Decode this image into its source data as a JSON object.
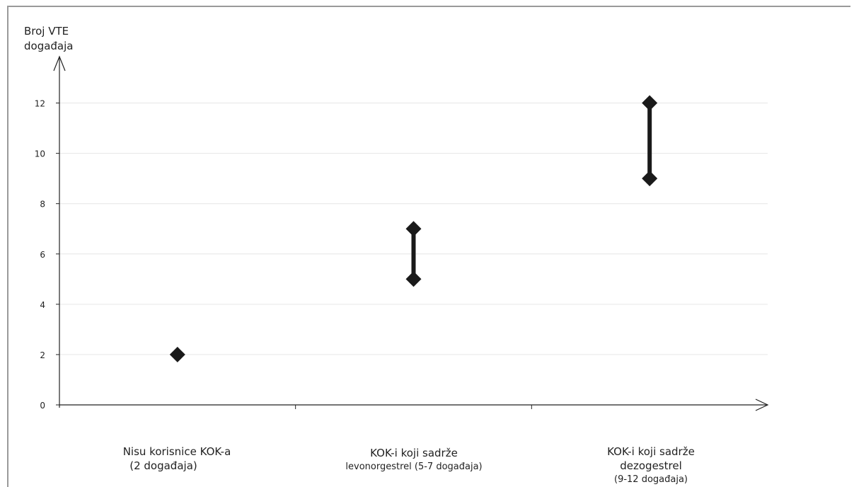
{
  "chart_data": {
    "type": "scatter",
    "ylabel_lines": [
      "Broj VTE",
      "događaja"
    ],
    "ylim": [
      0,
      13
    ],
    "yticks": [
      0,
      2,
      4,
      6,
      8,
      10,
      12
    ],
    "grid": true,
    "categories": [
      {
        "lines": [
          "Nisu korisnice KOK-a",
          "(2 događaja)"
        ],
        "min": 2,
        "max": 2
      },
      {
        "lines": [
          "KOK-i koji sadrže",
          "levonorgestrel (5-7 događaja)"
        ],
        "min": 5,
        "max": 7
      },
      {
        "lines": [
          "KOK-i koji sadrže",
          "dezogestrel",
          "(9-12 događaja)"
        ],
        "min": 9,
        "max": 12
      }
    ]
  }
}
